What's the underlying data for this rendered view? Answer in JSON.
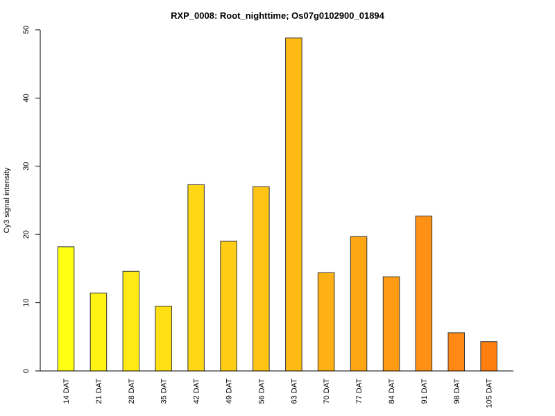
{
  "chart_data": {
    "type": "bar",
    "title": "RXP_0008: Root_nighttime; Os07g0102900_01894",
    "xlabel": "",
    "ylabel": "Cy3 signal intensity",
    "ylim": [
      0,
      50
    ],
    "yticks": [
      0,
      10,
      20,
      30,
      40,
      50
    ],
    "grid": false,
    "legend": "none",
    "categories": [
      "14 DAT",
      "21 DAT",
      "28 DAT",
      "35 DAT",
      "42 DAT",
      "49 DAT",
      "56 DAT",
      "63 DAT",
      "70 DAT",
      "77 DAT",
      "84 DAT",
      "91 DAT",
      "98 DAT",
      "105 DAT"
    ],
    "values": [
      18.2,
      11.4,
      14.6,
      9.5,
      27.3,
      19.0,
      27.0,
      48.8,
      14.4,
      19.7,
      13.8,
      22.7,
      5.6,
      4.3
    ],
    "colors": [
      "#FFFF14",
      "#FFF314",
      "#FFEA14",
      "#FFE014",
      "#FFD714",
      "#FFCE14",
      "#FFC414",
      "#FFBA14",
      "#FFB014",
      "#FFA614",
      "#FF9C14",
      "#FF9214",
      "#FF8914",
      "#FF7F0E"
    ]
  }
}
